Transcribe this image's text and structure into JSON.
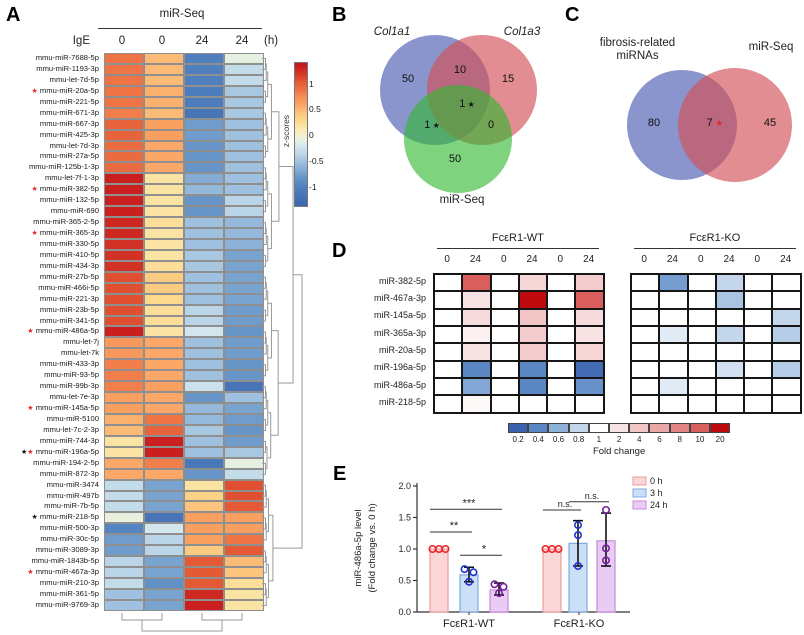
{
  "panel_labels": {
    "a": "A",
    "b": "B",
    "c": "C",
    "d": "D",
    "e": "E"
  },
  "chart_data": [
    {
      "id": "A",
      "type": "heatmap",
      "title": "miR-Seq",
      "condition_label": "IgE",
      "columns": [
        "0",
        "0",
        "24",
        "24"
      ],
      "unit_label": "(h)",
      "colorbar": {
        "title": "z-scores",
        "ticks": [
          "1",
          "0.5",
          "0",
          "-0.5",
          "-1"
        ],
        "tick_values": [
          1,
          0.5,
          0,
          -0.5,
          -1
        ],
        "zmin": -1.35,
        "zmax": 1.42,
        "stops": [
          [
            -1.3,
            "#3e6ab1"
          ],
          [
            -1.0,
            "#4f7fbd"
          ],
          [
            -0.8,
            "#6795c8"
          ],
          [
            -0.6,
            "#8cb2d8"
          ],
          [
            -0.45,
            "#a8c8e2"
          ],
          [
            -0.3,
            "#c3dcea"
          ],
          [
            -0.15,
            "#dcebee"
          ],
          [
            -0.07,
            "#e5f0e0"
          ],
          [
            0.0,
            "#f2f0d5"
          ],
          [
            0.15,
            "#fbe9ae"
          ],
          [
            0.3,
            "#fcd98d"
          ],
          [
            0.45,
            "#fcc47c"
          ],
          [
            0.6,
            "#faa767"
          ],
          [
            0.75,
            "#f69156"
          ],
          [
            0.9,
            "#ee7446"
          ],
          [
            1.05,
            "#e45a35"
          ],
          [
            1.2,
            "#d63a27"
          ],
          [
            1.4,
            "#c5161d"
          ]
        ]
      },
      "star_colors": {
        "r": "#e8262a",
        "k": "#111111"
      },
      "rows": [
        {
          "n": "mmu-miR-7688-5p",
          "m": "",
          "z": [
            0.9,
            0.5,
            -1.0,
            -0.07
          ]
        },
        {
          "n": "mmu-miR-1193-3p",
          "m": "",
          "z": [
            0.9,
            0.5,
            -1.0,
            -0.3
          ]
        },
        {
          "n": "mmu-let-7d-5p",
          "m": "",
          "z": [
            0.9,
            0.5,
            -1.0,
            -0.3
          ]
        },
        {
          "n": "mmu-miR-20a-5p",
          "m": "r",
          "z": [
            0.9,
            0.55,
            -1.05,
            -0.45
          ]
        },
        {
          "n": "mmu-miR-221-5p",
          "m": "",
          "z": [
            0.9,
            0.55,
            -1.05,
            -0.45
          ]
        },
        {
          "n": "mmu-miR-671-3p",
          "m": "",
          "z": [
            0.85,
            0.5,
            -1.15,
            -0.45
          ]
        },
        {
          "n": "mmu-miR-667-3p",
          "m": "",
          "z": [
            1.0,
            0.65,
            -0.75,
            -0.5
          ]
        },
        {
          "n": "mmu-miR-425-3p",
          "m": "",
          "z": [
            1.0,
            0.65,
            -0.75,
            -0.5
          ]
        },
        {
          "n": "mmu-let-7d-3p",
          "m": "",
          "z": [
            0.95,
            0.6,
            -0.8,
            -0.5
          ]
        },
        {
          "n": "mmu-miR-27a-5p",
          "m": "",
          "z": [
            0.95,
            0.6,
            -0.8,
            -0.5
          ]
        },
        {
          "n": "mmu-miR-125b-1-3p",
          "m": "",
          "z": [
            0.95,
            0.6,
            -0.8,
            -0.5
          ]
        },
        {
          "n": "mmu-let-7f-1-3p",
          "m": "",
          "z": [
            1.35,
            0.2,
            -0.65,
            -0.5
          ]
        },
        {
          "n": "mmu-miR-382-5p",
          "m": "r",
          "z": [
            1.35,
            0.2,
            -0.55,
            -0.5
          ]
        },
        {
          "n": "mmu-miR-132-5p",
          "m": "",
          "z": [
            1.35,
            0.2,
            -0.8,
            -0.35
          ]
        },
        {
          "n": "mmu-miR-690",
          "m": "",
          "z": [
            1.35,
            0.2,
            -0.8,
            -0.35
          ]
        },
        {
          "n": "mmu-miR-365-2-5p",
          "m": "",
          "z": [
            1.3,
            0.25,
            -0.5,
            -0.55
          ]
        },
        {
          "n": "mmu-miR-365-3p",
          "m": "r",
          "z": [
            1.3,
            0.2,
            -0.5,
            -0.55
          ]
        },
        {
          "n": "mmu-miR-330-5p",
          "m": "",
          "z": [
            1.25,
            0.2,
            -0.5,
            -0.6
          ]
        },
        {
          "n": "mmu-miR-410-5p",
          "m": "",
          "z": [
            1.25,
            0.2,
            -0.45,
            -0.7
          ]
        },
        {
          "n": "mmu-miR-434-3p",
          "m": "",
          "z": [
            1.25,
            0.25,
            -0.45,
            -0.7
          ]
        },
        {
          "n": "mmu-miR-27b-5p",
          "m": "",
          "z": [
            1.1,
            0.4,
            -0.5,
            -0.7
          ]
        },
        {
          "n": "mmu-miR-466i-5p",
          "m": "",
          "z": [
            1.1,
            0.4,
            -0.5,
            -0.7
          ]
        },
        {
          "n": "mmu-miR-221-3p",
          "m": "",
          "z": [
            1.1,
            0.3,
            -0.5,
            -0.7
          ]
        },
        {
          "n": "mmu-miR-23b-5p",
          "m": "",
          "z": [
            1.1,
            0.25,
            -0.35,
            -0.75
          ]
        },
        {
          "n": "mmu-miR-341-5p",
          "m": "",
          "z": [
            1.1,
            0.25,
            -0.35,
            -0.75
          ]
        },
        {
          "n": "mmu-miR-486a-5p",
          "m": "r",
          "z": [
            1.35,
            0.2,
            -0.2,
            -0.8
          ]
        },
        {
          "n": "mmu-let-7j",
          "m": "",
          "z": [
            0.7,
            0.6,
            -0.5,
            -0.75
          ]
        },
        {
          "n": "mmu-let-7k",
          "m": "",
          "z": [
            0.7,
            0.6,
            -0.5,
            -0.75
          ]
        },
        {
          "n": "mmu-miR-433-3p",
          "m": "",
          "z": [
            0.85,
            0.6,
            -0.5,
            -0.8
          ]
        },
        {
          "n": "mmu-miR-93-5p",
          "m": "",
          "z": [
            0.85,
            0.6,
            -0.5,
            -0.8
          ]
        },
        {
          "n": "mmu-miR-99b-3p",
          "m": "",
          "z": [
            0.85,
            0.65,
            -0.25,
            -1.15
          ]
        },
        {
          "n": "mmu-let-7e-3p",
          "m": "",
          "z": [
            0.65,
            0.6,
            -0.8,
            -0.5
          ]
        },
        {
          "n": "mmu-miR-145a-5p",
          "m": "r",
          "z": [
            0.65,
            0.6,
            -0.55,
            -0.7
          ]
        },
        {
          "n": "mmu-miR-5100",
          "m": "",
          "z": [
            0.55,
            0.9,
            -0.55,
            -0.75
          ]
        },
        {
          "n": "mmu-let-7c-2-3p",
          "m": "",
          "z": [
            0.5,
            1.0,
            -0.45,
            -0.8
          ]
        },
        {
          "n": "mmu-miR-744-3p",
          "m": "",
          "z": [
            0.2,
            1.35,
            -0.5,
            -0.75
          ]
        },
        {
          "n": "mmu-miR-196a-5p",
          "m": "kr",
          "z": [
            0.2,
            1.35,
            -0.5,
            -0.45
          ]
        },
        {
          "n": "mmu-miR-194-2-5p",
          "m": "",
          "z": [
            0.6,
            0.85,
            -1.1,
            -0.07
          ]
        },
        {
          "n": "mmu-miR-872-3p",
          "m": "",
          "z": [
            0.6,
            0.6,
            -0.8,
            -0.3
          ]
        },
        {
          "n": "mmu-miR-3474",
          "m": "",
          "z": [
            -0.3,
            -0.7,
            0.2,
            1.1
          ]
        },
        {
          "n": "mmu-miR-497b",
          "m": "",
          "z": [
            -0.3,
            -0.7,
            0.35,
            1.1
          ]
        },
        {
          "n": "mmu-miR-7b-5p",
          "m": "",
          "z": [
            -0.3,
            -0.7,
            0.45,
            1.05
          ]
        },
        {
          "n": "mmu-miR-218-5p",
          "m": "k",
          "z": [
            -0.05,
            -1.15,
            0.65,
            0.65
          ]
        },
        {
          "n": "mmu-miR-500-3p",
          "m": "",
          "z": [
            -0.95,
            -0.2,
            0.65,
            0.65
          ]
        },
        {
          "n": "mmu-miR-30c-5p",
          "m": "",
          "z": [
            -0.75,
            -0.35,
            0.65,
            0.9
          ]
        },
        {
          "n": "mmu-miR-3089-3p",
          "m": "",
          "z": [
            -0.75,
            -0.35,
            0.4,
            1.05
          ]
        },
        {
          "n": "mmu-miR-1843b-5p",
          "m": "",
          "z": [
            -0.35,
            -0.7,
            1.05,
            0.5
          ]
        },
        {
          "n": "mmu-miR-467a-3p",
          "m": "r",
          "z": [
            -0.35,
            -0.7,
            1.05,
            0.45
          ]
        },
        {
          "n": "mmu-miR-210-3p",
          "m": "",
          "z": [
            -0.3,
            -0.85,
            1.05,
            0.25
          ]
        },
        {
          "n": "mmu-miR-361-5p",
          "m": "",
          "z": [
            -0.5,
            -0.7,
            1.3,
            0.2
          ]
        },
        {
          "n": "mmu-miR-9769-3p",
          "m": "",
          "z": [
            -0.5,
            -0.7,
            1.35,
            0.2
          ]
        }
      ]
    },
    {
      "id": "B",
      "type": "venn3",
      "sets": [
        {
          "name": "Col1a1",
          "italic": true,
          "color": "rgba(88,104,184,0.70)"
        },
        {
          "name": "Col1a3",
          "italic": true,
          "color": "rgba(211,80,86,0.65)"
        },
        {
          "name": "miR-Seq",
          "italic": false,
          "color": "rgba(48,184,48,0.62)"
        }
      ],
      "regions": [
        {
          "key": "a_only",
          "value": "50",
          "star": ""
        },
        {
          "key": "ab",
          "value": "10",
          "star": ""
        },
        {
          "key": "b_only",
          "value": "15",
          "star": ""
        },
        {
          "key": "abc",
          "value": "1",
          "star": "k"
        },
        {
          "key": "ac",
          "value": "1",
          "star": "k"
        },
        {
          "key": "bc",
          "value": "0",
          "star": ""
        },
        {
          "key": "c_only",
          "value": "50",
          "star": ""
        }
      ]
    },
    {
      "id": "C",
      "type": "venn2",
      "sets": [
        {
          "name": "fibrosis-related miRNAs",
          "italic": false,
          "color": "rgba(88,104,184,0.70)"
        },
        {
          "name": "miR-Seq",
          "italic": false,
          "color": "rgba(211,80,86,0.65)"
        }
      ],
      "regions": [
        {
          "key": "left",
          "value": "80",
          "star": ""
        },
        {
          "key": "center",
          "value": "7",
          "star": "r"
        },
        {
          "key": "right",
          "value": "45",
          "star": ""
        }
      ]
    },
    {
      "id": "D",
      "type": "heatmap",
      "groups": [
        "FcεR1-WT",
        "FcεR1-KO"
      ],
      "columns": [
        "0",
        "24",
        "0",
        "24",
        "0",
        "24"
      ],
      "rows": [
        "miR-382-5p",
        "miR-467a-3p",
        "miR-145a-5p",
        "miR-365a-3p",
        "miR-20a-5p",
        "miR-196a-5p",
        "miR-486a-5p",
        "miR-218-5p"
      ],
      "values_wt": [
        [
          1,
          10,
          1,
          3,
          1,
          3.5
        ],
        [
          1,
          2,
          1,
          20,
          1,
          10
        ],
        [
          1,
          2.5,
          1,
          4,
          1,
          2.5
        ],
        [
          1,
          1.5,
          1,
          3.5,
          1,
          2
        ],
        [
          1,
          2,
          1,
          3.5,
          1,
          3
        ],
        [
          1,
          0.4,
          1,
          0.4,
          1,
          0.25
        ],
        [
          1,
          0.55,
          1,
          0.4,
          1,
          0.45
        ],
        [
          1,
          1.2,
          1,
          1,
          1,
          1
        ]
      ],
      "values_ko": [
        [
          1,
          0.5,
          1,
          0.8,
          1,
          1
        ],
        [
          1,
          1,
          1,
          0.7,
          1,
          1
        ],
        [
          1,
          1,
          1,
          1,
          1,
          0.8
        ],
        [
          1,
          0.9,
          1,
          0.8,
          1,
          0.75
        ],
        [
          1,
          1,
          1,
          1,
          1,
          1
        ],
        [
          1,
          1,
          1,
          0.85,
          1,
          0.75
        ],
        [
          1,
          0.9,
          1,
          1,
          1,
          1
        ],
        [
          1,
          1,
          1,
          1,
          1,
          1
        ]
      ],
      "colorbar": {
        "title": "Fold change",
        "labels": [
          "0.2",
          "0.4",
          "0.6",
          "0.8",
          "1",
          "2",
          "4",
          "6",
          "8",
          "10",
          "20"
        ],
        "anchors": [
          [
            0.2,
            "#3a62ae"
          ],
          [
            0.4,
            "#5b86c4"
          ],
          [
            0.6,
            "#8fb2d9"
          ],
          [
            0.8,
            "#c3d6ec"
          ],
          [
            1,
            "#ffffff"
          ],
          [
            2,
            "#f7e3e3"
          ],
          [
            4,
            "#f2c6c6"
          ],
          [
            6,
            "#eba7a7"
          ],
          [
            8,
            "#e28383"
          ],
          [
            10,
            "#d95f5f"
          ],
          [
            20,
            "#c00b0e"
          ]
        ]
      }
    },
    {
      "id": "E",
      "type": "bar",
      "ylabel_line1": "miR-486a-5p level",
      "ylabel_line2": "(Fold change vs. 0 h)",
      "ylim": [
        0,
        2.0
      ],
      "yticks": [
        "0.0",
        "0.5",
        "1.0",
        "1.5",
        "2.0"
      ],
      "categories": [
        "FcεR1-WT",
        "FcεR1-KO"
      ],
      "series": [
        {
          "name": "0 h",
          "fill": "#fad6d6",
          "stroke": "#ef9a9e",
          "point_color": "#e8262a"
        },
        {
          "name": "3 h",
          "fill": "#cbdff6",
          "stroke": "#7fabdf",
          "point_color": "#1f35d0"
        },
        {
          "name": "24 h",
          "fill": "#e9ccf3",
          "stroke": "#c98ade",
          "point_color": "#7a1fa2"
        }
      ],
      "bars": [
        {
          "group": 0,
          "series": 0,
          "mean": 1.0,
          "lo": null,
          "hi": null,
          "points": [
            1.0,
            1.0,
            1.0
          ]
        },
        {
          "group": 0,
          "series": 1,
          "mean": 0.59,
          "lo": 0.48,
          "hi": 0.71,
          "points": [
            0.68,
            0.63,
            0.48
          ]
        },
        {
          "group": 0,
          "series": 2,
          "mean": 0.35,
          "lo": 0.27,
          "hi": 0.46,
          "points": [
            0.44,
            0.4,
            0.3
          ]
        },
        {
          "group": 1,
          "series": 0,
          "mean": 1.0,
          "lo": null,
          "hi": null,
          "points": [
            1.0,
            1.0,
            1.0
          ]
        },
        {
          "group": 1,
          "series": 1,
          "mean": 1.09,
          "lo": 0.73,
          "hi": 1.45,
          "points": [
            1.38,
            1.22,
            0.73
          ]
        },
        {
          "group": 1,
          "series": 2,
          "mean": 1.13,
          "lo": 0.73,
          "hi": 1.57,
          "points": [
            1.62,
            1.01,
            0.82
          ]
        }
      ],
      "significance": [
        {
          "text": "**",
          "group": 0,
          "from": 0,
          "to": 1,
          "y": 1.27
        },
        {
          "text": "***",
          "group": 0,
          "from": 0,
          "to": 2,
          "y": 1.63
        },
        {
          "text": "*",
          "group": 0,
          "from": 1,
          "to": 2,
          "y": 0.9
        },
        {
          "text": "n.s.",
          "group": 1,
          "from": 0,
          "to": 1,
          "y": 1.62
        },
        {
          "text": "n.s.",
          "group": 1,
          "from": 1,
          "to": 2,
          "y": 1.75
        }
      ]
    }
  ]
}
